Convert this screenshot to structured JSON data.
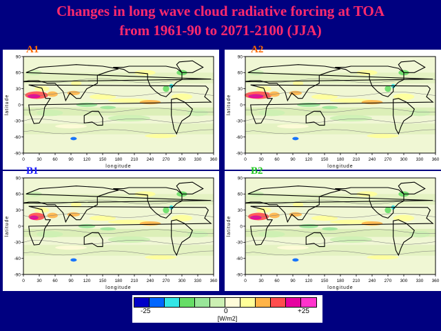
{
  "title": {
    "line1": "Changes in long wave cloud radiative forcing at TOA",
    "line2": "from 1961-90 to 2071-2100 (JJA)"
  },
  "panels": [
    {
      "label": "A1",
      "label_color": "#ff6a00"
    },
    {
      "label": "A2",
      "label_color": "#ff6a00"
    },
    {
      "label": "B1",
      "label_color": "#1a1aff"
    },
    {
      "label": "B2",
      "label_color": "#1ec81e"
    }
  ],
  "axes": {
    "xlabel": "longitude",
    "ylabel": "latitude",
    "xticks": [
      "0",
      "30",
      "60",
      "90",
      "120",
      "150",
      "180",
      "210",
      "240",
      "270",
      "300",
      "330",
      "360"
    ],
    "yticks": [
      "90",
      "60",
      "30",
      "0",
      "-30",
      "-60",
      "-90"
    ]
  },
  "colorbar": {
    "colors": [
      "#0000c8",
      "#0066ff",
      "#33e6e6",
      "#66dd66",
      "#99e699",
      "#ccf0b3",
      "#fffcd9",
      "#ffff99",
      "#ffb347",
      "#ff4d4d",
      "#e600a0",
      "#ff33cc"
    ],
    "tick_labels": [
      "-25",
      "0",
      "+25"
    ],
    "unit": "[W/m2]"
  }
}
